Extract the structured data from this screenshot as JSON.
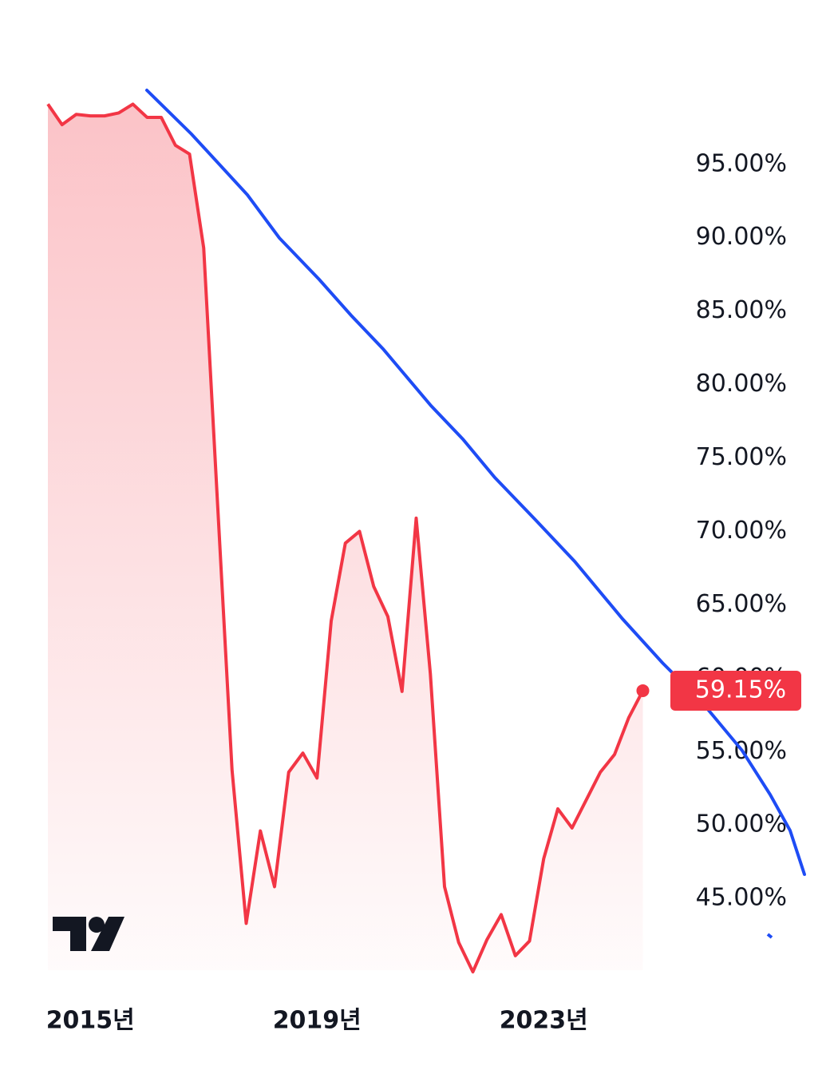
{
  "chart_data": {
    "type": "area",
    "categories": [
      null,
      null,
      null,
      "2015년",
      null,
      null,
      null,
      null,
      null,
      null,
      null,
      null,
      null,
      null,
      null,
      null,
      null,
      null,
      null,
      "2019년",
      null,
      null,
      null,
      null,
      null,
      null,
      null,
      null,
      null,
      null,
      null,
      null,
      null,
      null,
      null,
      "2023년",
      null,
      null,
      null,
      null,
      null,
      null,
      null
    ],
    "series": [
      {
        "color": "#f23645",
        "values": [
          99.1,
          97.7,
          98.4,
          98.3,
          98.3,
          98.5,
          99.1,
          98.2,
          98.2,
          96.3,
          95.7,
          89.3,
          71.5,
          53.75,
          43.3,
          49.6,
          45.8,
          53.6,
          54.9,
          53.2,
          63.9,
          69.2,
          70.0,
          66.25,
          64.2,
          59.1,
          70.9,
          60.3,
          45.8,
          42.0,
          40.0,
          42.2,
          43.9,
          41.1,
          42.1,
          47.7,
          51.1,
          49.8,
          51.7,
          53.6,
          54.8,
          57.3,
          59.15
        ],
        "value_labels": [
          null,
          null,
          null,
          null,
          null,
          null,
          null,
          null,
          null,
          null,
          null,
          null,
          null,
          null,
          null,
          null,
          null,
          null,
          null,
          null,
          null,
          null,
          null,
          null,
          null,
          null,
          null,
          null,
          null,
          null,
          null,
          null,
          null,
          null,
          null,
          null,
          null,
          null,
          null,
          null,
          null,
          null,
          "59.15%"
        ]
      }
    ],
    "ylim": [
      39.35,
      102.93
    ],
    "yticks": [
      {
        "value": 45,
        "label": "45.00%"
      },
      {
        "value": 50,
        "label": "50.00%"
      },
      {
        "value": 55,
        "label": "55.00%"
      },
      {
        "value": 60,
        "label": "60.00%"
      },
      {
        "value": 65,
        "label": "65.00%"
      },
      {
        "value": 70,
        "label": "70.00%"
      },
      {
        "value": 75,
        "label": "75.00%"
      },
      {
        "value": 80,
        "label": "80.00%"
      },
      {
        "value": 85,
        "label": "85.00%"
      },
      {
        "value": 90,
        "label": "90.00%"
      },
      {
        "value": 95,
        "label": "95.00%"
      }
    ],
    "grid": false
  }
}
